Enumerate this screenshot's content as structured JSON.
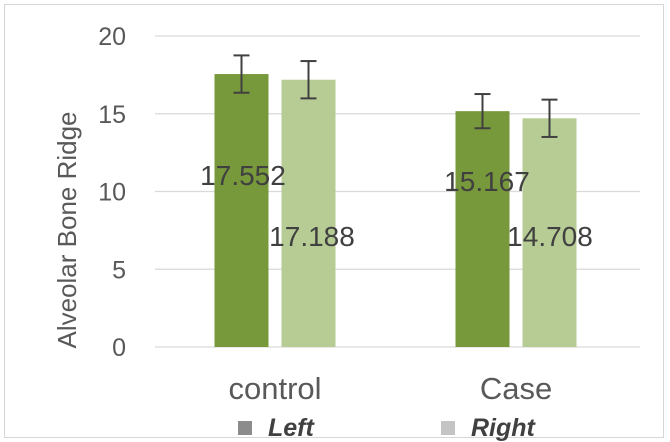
{
  "chart_data": {
    "type": "bar",
    "categories": [
      "control",
      "Case"
    ],
    "series": [
      {
        "name": "Left",
        "values": [
          17.552,
          15.167
        ],
        "errors": [
          1.2,
          1.1
        ],
        "color": "#77983b",
        "legend_color": "#8c8c8c"
      },
      {
        "name": "Right",
        "values": [
          17.188,
          14.708
        ],
        "errors": [
          1.2,
          1.2
        ],
        "color": "#b6cc94",
        "legend_color": "#c4c4c4"
      }
    ],
    "data_labels": [
      [
        "17.552",
        "15.167"
      ],
      [
        "17.188",
        "14.708"
      ]
    ],
    "ylabel": "Alveolar Bone Ridge",
    "xlabel": "",
    "title": "",
    "ylim": [
      0,
      20
    ],
    "yticks": [
      0,
      5,
      10,
      15,
      20
    ],
    "grid": true,
    "legend_position": "bottom"
  }
}
